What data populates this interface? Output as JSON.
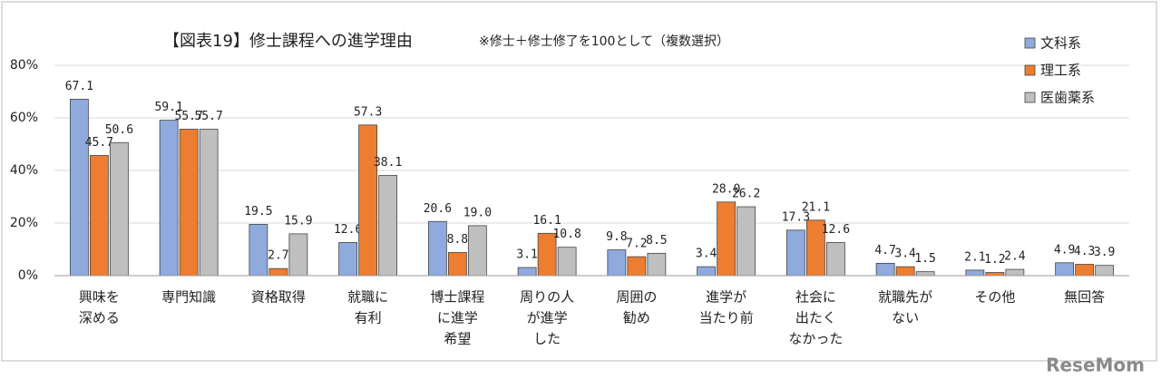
{
  "chart_data": {
    "type": "bar",
    "title": "【図表19】修士課程への進学理由",
    "subtitle": "※修士＋修士修了を100として（複数選択）",
    "watermark": "ReseMom",
    "categories": [
      [
        "興味を",
        "深める"
      ],
      [
        "専門知識"
      ],
      [
        "資格取得"
      ],
      [
        "就職に",
        "有利"
      ],
      [
        "博士課程",
        "に進学",
        "希望"
      ],
      [
        "周りの人",
        "が進学",
        "した"
      ],
      [
        "周囲の",
        "勧め"
      ],
      [
        "進学が",
        "当たり前"
      ],
      [
        "社会に",
        "出たく",
        "なかった"
      ],
      [
        "就職先が",
        "ない"
      ],
      [
        "その他"
      ],
      [
        "無回答"
      ]
    ],
    "series": [
      {
        "name": "文科系",
        "color": "#8faadc",
        "values": [
          67.1,
          59.1,
          19.5,
          12.6,
          20.6,
          3.1,
          9.8,
          3.4,
          17.3,
          4.7,
          2.1,
          4.9
        ],
        "value_labels": [
          "67.1",
          "59.1",
          "19.5",
          "12.6",
          "20.6",
          "3.1",
          "9.8",
          "3.4",
          "17.3",
          "4.7",
          "2.1",
          "4.9"
        ]
      },
      {
        "name": "理工系",
        "color": "#ed7d31",
        "values": [
          45.7,
          55.7,
          2.7,
          57.3,
          8.8,
          16.1,
          7.2,
          28.0,
          21.1,
          3.4,
          1.2,
          4.3
        ],
        "value_labels": [
          "45.7",
          "55.7",
          "2.7",
          "57.3",
          "8.8",
          "16.1",
          "7.2",
          "28.0",
          "21.1",
          "3.4",
          "1.2",
          "4.3"
        ]
      },
      {
        "name": "医歯薬系",
        "color": "#bfbfbf",
        "values": [
          50.6,
          55.7,
          15.9,
          38.1,
          19.0,
          10.8,
          8.5,
          26.2,
          12.6,
          1.5,
          2.4,
          3.9
        ],
        "value_labels": [
          "50.6",
          "55.7",
          "15.9",
          "38.1",
          "19.0",
          "10.8",
          "8.5",
          "26.2",
          "12.6",
          "1.5",
          "2.4",
          "3.9"
        ]
      }
    ],
    "ylim": [
      0,
      80
    ],
    "yticks": [
      {
        "value": 0,
        "label": "0%"
      },
      {
        "value": 20,
        "label": "20%"
      },
      {
        "value": 40,
        "label": "40%"
      },
      {
        "value": 60,
        "label": "60%"
      },
      {
        "value": 80,
        "label": "80%"
      }
    ],
    "grid": true,
    "legend": "top-right"
  }
}
